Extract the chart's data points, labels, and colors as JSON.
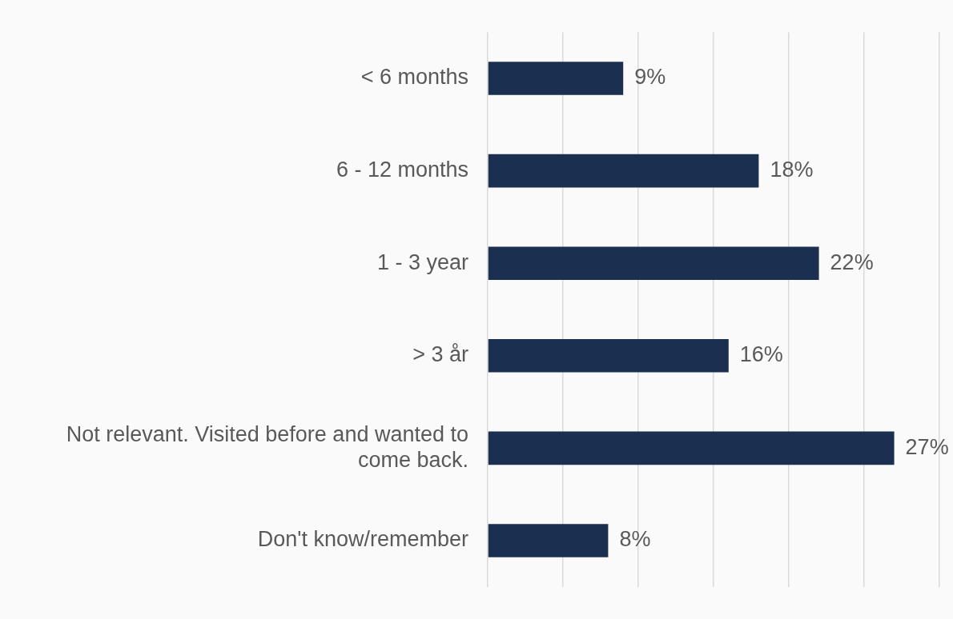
{
  "chart_data": {
    "type": "bar",
    "orientation": "horizontal",
    "categories": [
      "< 6 months",
      "6 - 12 months",
      "1 - 3 year",
      "> 3 år",
      "Not relevant. Visited before and wanted to come back.",
      "Don't know/remember"
    ],
    "values": [
      9,
      18,
      22,
      16,
      27,
      8
    ],
    "value_labels": [
      "9%",
      "18%",
      "22%",
      "16%",
      "27%",
      "8%"
    ],
    "color": "#1b2f50",
    "xlim": [
      0,
      30
    ],
    "xticks": [
      {
        "value": 0,
        "label": null
      },
      {
        "value": 5,
        "label": null
      },
      {
        "value": 10,
        "label": null
      },
      {
        "value": 15,
        "label": null
      },
      {
        "value": 20,
        "label": null
      },
      {
        "value": 25,
        "label": null
      },
      {
        "value": 30,
        "label": null
      }
    ],
    "grid": "x",
    "tick_labels": "y",
    "legend": false
  }
}
